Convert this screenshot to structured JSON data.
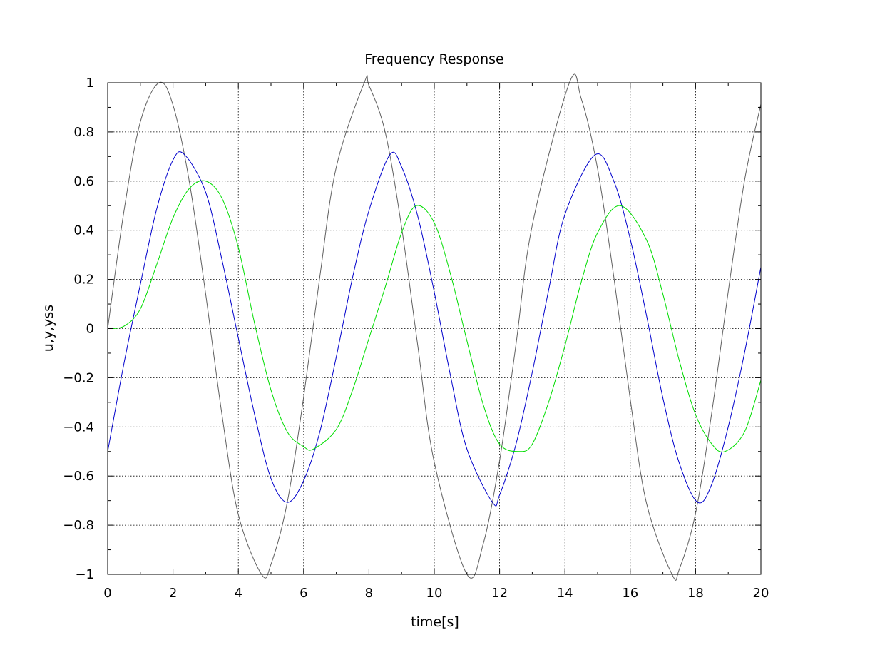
{
  "chart_data": {
    "type": "line",
    "title": "Frequency Response",
    "xlabel": "time[s]",
    "ylabel": "u,y,yss",
    "xlim": [
      0,
      20
    ],
    "ylim": [
      -1,
      1
    ],
    "xticks": [
      0,
      2,
      4,
      6,
      8,
      10,
      12,
      14,
      16,
      18,
      20
    ],
    "yticks": [
      -1,
      -0.8,
      -0.6,
      -0.4,
      -0.2,
      0,
      0.2,
      0.4,
      0.6,
      0.8,
      1
    ],
    "xtick_labels": [
      "0",
      "2",
      "4",
      "6",
      "8",
      "10",
      "12",
      "14",
      "16",
      "18",
      "20"
    ],
    "ytick_labels": [
      "−1",
      "−0.8",
      "−0.6",
      "−0.4",
      "−0.2",
      "0",
      "0.2",
      "0.4",
      "0.6",
      "0.8",
      "1"
    ],
    "grid": true,
    "series": [
      {
        "color": "#606060",
        "x": [
          0,
          0.5,
          1,
          1.5708,
          2,
          2.5,
          3,
          3.5,
          4,
          4.7124,
          5,
          5.5,
          6,
          6.5,
          7,
          7.854,
          8,
          8.5,
          9,
          9.5,
          10,
          11,
          11.5,
          12,
          12.5,
          13,
          14.137,
          14.5,
          15,
          15.5,
          16,
          16.5,
          17.279,
          17.5,
          18,
          18.5,
          19,
          19.5,
          20
        ],
        "y": [
          0,
          0.479,
          0.841,
          1,
          0.909,
          0.598,
          0.141,
          -0.351,
          -0.757,
          -1,
          -0.959,
          -0.706,
          -0.279,
          0.215,
          0.657,
          1,
          0.989,
          0.798,
          0.412,
          -0.075,
          -0.544,
          -1,
          -0.875,
          -0.537,
          -0.066,
          0.42,
          1,
          0.935,
          0.65,
          0.207,
          -0.288,
          -0.712,
          -1,
          -0.98,
          -0.751,
          -0.338,
          0.15,
          0.603,
          0.913
        ]
      },
      {
        "color": "#0000cc",
        "x": [
          0,
          0.5,
          1,
          1.5,
          2,
          2.356,
          3,
          3.5,
          4,
          4.5,
          5,
          5.498,
          6,
          6.5,
          7,
          7.5,
          8,
          8.639,
          9,
          9.5,
          10,
          10.5,
          11,
          11.781,
          12,
          12.5,
          13,
          13.5,
          14,
          14.923,
          15.5,
          16,
          16.5,
          17,
          17.5,
          18.064,
          18.5,
          19,
          19.5,
          20
        ],
        "y": [
          -0.5,
          -0.141,
          0.18,
          0.486,
          0.686,
          0.707,
          0.555,
          0.279,
          -0.038,
          -0.35,
          -0.61,
          -0.707,
          -0.619,
          -0.418,
          -0.115,
          0.209,
          0.48,
          0.707,
          0.658,
          0.454,
          0.148,
          -0.194,
          -0.49,
          -0.707,
          -0.677,
          -0.471,
          -0.178,
          0.156,
          0.464,
          0.707,
          0.599,
          0.364,
          0.052,
          -0.283,
          -0.547,
          -0.707,
          -0.632,
          -0.4,
          -0.098,
          0.25
        ]
      },
      {
        "color": "#00dd00",
        "x": [
          0,
          0.5,
          1,
          1.5,
          2,
          2.5,
          3,
          3.5,
          4,
          4.5,
          5,
          5.5,
          6,
          6.3,
          7,
          7.5,
          8,
          8.5,
          9,
          9.45,
          10,
          10.5,
          11,
          11.5,
          12,
          12.6,
          13,
          13.5,
          14,
          14.5,
          15,
          15.7,
          16.5,
          17,
          17.5,
          18,
          18.5,
          18.9,
          19.5,
          20
        ],
        "y": [
          0,
          0.01,
          0.08,
          0.26,
          0.45,
          0.57,
          0.6,
          0.53,
          0.33,
          0.02,
          -0.25,
          -0.42,
          -0.48,
          -0.49,
          -0.41,
          -0.25,
          -0.04,
          0.17,
          0.39,
          0.5,
          0.43,
          0.22,
          -0.05,
          -0.31,
          -0.47,
          -0.5,
          -0.47,
          -0.3,
          -0.07,
          0.19,
          0.39,
          0.5,
          0.36,
          0.14,
          -0.13,
          -0.35,
          -0.47,
          -0.5,
          -0.42,
          -0.21
        ]
      }
    ]
  }
}
